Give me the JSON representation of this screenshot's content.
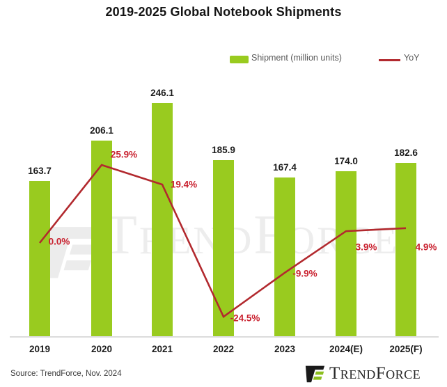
{
  "page": {
    "title": "2019-2025 Global Notebook Shipments",
    "source_note": "Source: TrendForce, Nov. 2024",
    "watermark_text": "TrendForce"
  },
  "legend": {
    "shipment_label": "Shipment (million units)",
    "yoy_label": "YoY"
  },
  "logo": {
    "brand": "TrendForce"
  },
  "colors": {
    "bar_green": "#99cb1f",
    "line_red": "#b2292e",
    "pct_label_red": "#c9202e",
    "logo_green": "#8cbf1f",
    "logo_black": "#1a1a1a",
    "watermark_gray": "#ededed"
  },
  "chart_data": {
    "type": "bar",
    "combo": "bar with overlaid line (YoY %)",
    "title": "2019-2025 Global Notebook Shipments",
    "categories": [
      "2019",
      "2020",
      "2021",
      "2022",
      "2023",
      "2024(E)",
      "2025(F)"
    ],
    "series": [
      {
        "name": "Shipment (million units)",
        "type": "bar",
        "values": [
          163.7,
          206.1,
          246.1,
          185.9,
          167.4,
          174.0,
          182.6
        ],
        "labels": [
          "163.7",
          "206.1",
          "246.1",
          "185.9",
          "167.4",
          "174.0",
          "182.6"
        ],
        "color": "#99cb1f"
      },
      {
        "name": "YoY",
        "type": "line",
        "values": [
          0.0,
          25.9,
          19.4,
          -24.5,
          -9.9,
          3.9,
          4.9
        ],
        "labels": [
          "0.0%",
          "25.9%",
          "19.4%",
          "-24.5%",
          "-9.9%",
          "3.9%",
          "4.9%"
        ],
        "color": "#b2292e",
        "label_color": "#c9202e"
      }
    ],
    "xlabel": "",
    "ylabel": "",
    "value_axis_visible": false,
    "grid": false,
    "legend_position": "top",
    "baseline_value": 0
  }
}
